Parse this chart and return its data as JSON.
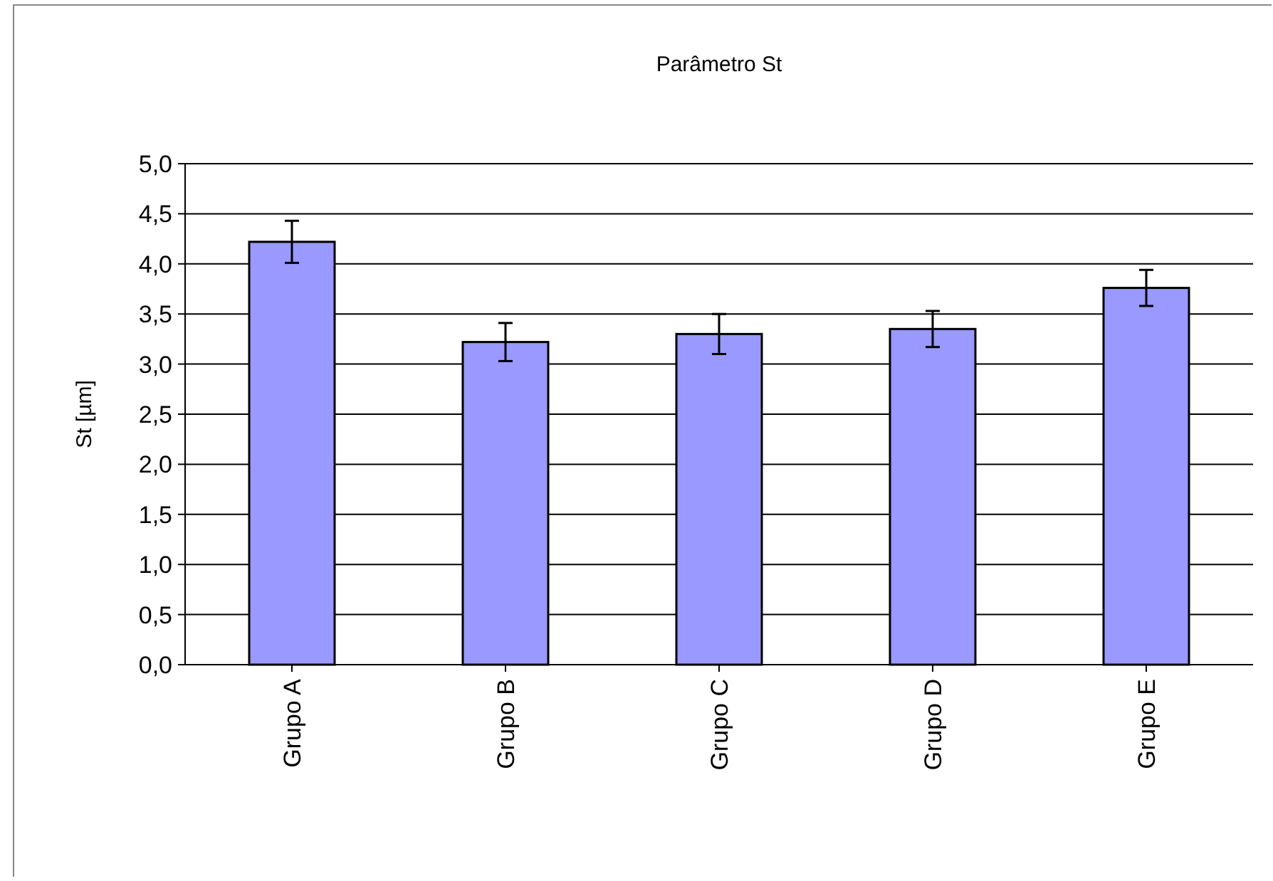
{
  "chart_data": {
    "type": "bar",
    "title": "Parâmetro St",
    "ylabel": "St [µm]",
    "categories": [
      "Grupo A",
      "Grupo B",
      "Grupo C",
      "Grupo D",
      "Grupo E"
    ],
    "values": [
      4.22,
      3.22,
      3.3,
      3.35,
      3.76
    ],
    "errors": [
      0.21,
      0.19,
      0.2,
      0.18,
      0.18
    ],
    "color": "#9999ff",
    "ylim": [
      0,
      5
    ],
    "yticks": [
      {
        "value": 0,
        "label": "0,0"
      },
      {
        "value": 0.5,
        "label": "0,5"
      },
      {
        "value": 1,
        "label": "1,0"
      },
      {
        "value": 1.5,
        "label": "1,5"
      },
      {
        "value": 2,
        "label": "2,0"
      },
      {
        "value": 2.5,
        "label": "2,5"
      },
      {
        "value": 3,
        "label": "3,0"
      },
      {
        "value": 3.5,
        "label": "3,5"
      },
      {
        "value": 4,
        "label": "4,0"
      },
      {
        "value": 4.5,
        "label": "4,5"
      },
      {
        "value": 5,
        "label": "5,0"
      }
    ],
    "grid": "y"
  }
}
